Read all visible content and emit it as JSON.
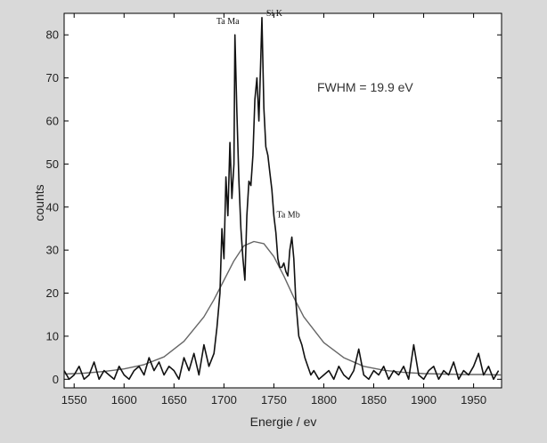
{
  "chart_data": {
    "type": "line",
    "title": "",
    "xlabel": "Energie / ev",
    "ylabel": "counts",
    "xlim": [
      1540,
      1978
    ],
    "ylim": [
      -2,
      85
    ],
    "x_ticks": [
      1550,
      1600,
      1650,
      1700,
      1750,
      1800,
      1850,
      1900,
      1950
    ],
    "y_ticks": [
      0,
      10,
      20,
      30,
      40,
      50,
      60,
      70,
      80
    ],
    "grid": false,
    "annotation": "FWHM = 19.9 eV",
    "peak_labels": [
      {
        "text": "Ta Ma",
        "x": 1711,
        "y": 80
      },
      {
        "text": "Si K",
        "x": 1738,
        "y": 84
      },
      {
        "text": "Ta Mb",
        "x": 1768,
        "y": 33
      }
    ],
    "series": [
      {
        "style": "noisy",
        "color": "#111111",
        "x": [
          1540,
          1545,
          1550,
          1555,
          1560,
          1565,
          1570,
          1575,
          1580,
          1585,
          1590,
          1595,
          1600,
          1605,
          1610,
          1615,
          1620,
          1625,
          1630,
          1635,
          1640,
          1645,
          1650,
          1655,
          1660,
          1665,
          1670,
          1675,
          1680,
          1685,
          1690,
          1693,
          1696,
          1698,
          1700,
          1702,
          1704,
          1706,
          1708,
          1710,
          1711,
          1713,
          1715,
          1717,
          1719,
          1721,
          1723,
          1725,
          1727,
          1729,
          1731,
          1733,
          1735,
          1737,
          1738,
          1740,
          1742,
          1744,
          1746,
          1748,
          1750,
          1752,
          1754,
          1756,
          1758,
          1760,
          1762,
          1764,
          1766,
          1768,
          1770,
          1772,
          1775,
          1778,
          1781,
          1784,
          1787,
          1790,
          1795,
          1800,
          1805,
          1810,
          1815,
          1820,
          1825,
          1830,
          1835,
          1840,
          1845,
          1850,
          1855,
          1860,
          1865,
          1870,
          1875,
          1880,
          1885,
          1890,
          1895,
          1900,
          1905,
          1910,
          1915,
          1920,
          1925,
          1930,
          1935,
          1940,
          1945,
          1950,
          1955,
          1960,
          1965,
          1970,
          1975
        ],
        "y": [
          2,
          0,
          1,
          3,
          0,
          1,
          4,
          0,
          2,
          1,
          0,
          3,
          1,
          0,
          2,
          3,
          1,
          5,
          2,
          4,
          1,
          3,
          2,
          0,
          5,
          2,
          6,
          1,
          8,
          3,
          6,
          12,
          20,
          35,
          28,
          47,
          38,
          55,
          42,
          50,
          80,
          62,
          46,
          35,
          28,
          23,
          38,
          46,
          45,
          52,
          65,
          70,
          60,
          75,
          84,
          63,
          54,
          52,
          48,
          44,
          38,
          34,
          28,
          26,
          26,
          27,
          25,
          24,
          30,
          33,
          28,
          18,
          10,
          8,
          5,
          3,
          1,
          2,
          0,
          1,
          2,
          0,
          3,
          1,
          0,
          2,
          7,
          1,
          0,
          2,
          1,
          3,
          0,
          2,
          1,
          3,
          0,
          8,
          1,
          0,
          2,
          3,
          0,
          2,
          1,
          4,
          0,
          2,
          1,
          3,
          6,
          1,
          3,
          0,
          2
        ]
      },
      {
        "style": "gaussian-fit",
        "color": "#666666",
        "x": [
          1540,
          1560,
          1580,
          1600,
          1620,
          1640,
          1660,
          1680,
          1690,
          1700,
          1710,
          1720,
          1730,
          1740,
          1750,
          1760,
          1770,
          1780,
          1800,
          1820,
          1840,
          1860,
          1880,
          1900,
          1920,
          1940,
          1960,
          1978
        ],
        "y": [
          1.2,
          1.4,
          1.8,
          2.4,
          3.4,
          5.2,
          8.8,
          14.5,
          18.5,
          23.0,
          27.5,
          31.0,
          32.0,
          31.5,
          28.5,
          24.0,
          19.0,
          14.5,
          8.5,
          5.0,
          3.0,
          2.1,
          1.6,
          1.3,
          1.2,
          1.1,
          1.1,
          1.0
        ]
      }
    ]
  }
}
